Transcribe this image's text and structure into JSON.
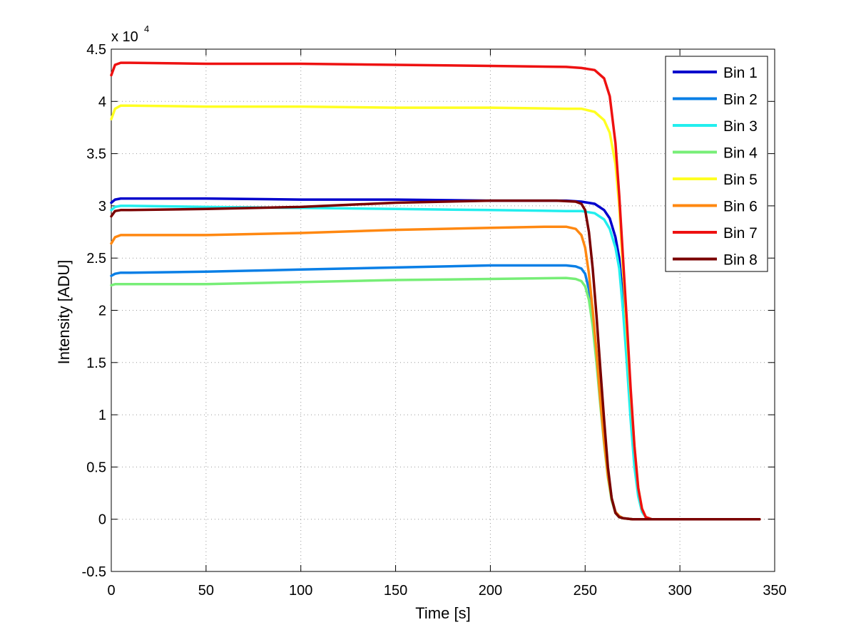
{
  "chart_data": {
    "type": "line",
    "title": "",
    "xlabel": "Time [s]",
    "ylabel": "Intensity [ADU]",
    "xlim": [
      0,
      350
    ],
    "ylim": [
      -0.5,
      4.5
    ],
    "xticks": [
      "0",
      "50",
      "100",
      "150",
      "200",
      "250",
      "300",
      "350"
    ],
    "yticks": [
      "-0.5",
      "0",
      "0.5",
      "1",
      "1.5",
      "2",
      "2.5",
      "3",
      "3.5",
      "4",
      "4.5"
    ],
    "y_multiplier": {
      "base": "x 10",
      "exponent": "4"
    },
    "grid": true,
    "legend_position": "top-right",
    "series": [
      {
        "name": "Bin 1",
        "color": "#0000cc",
        "x": [
          0,
          2,
          5,
          10,
          50,
          100,
          150,
          200,
          240,
          248,
          255,
          260,
          263,
          266,
          268,
          270,
          272,
          274,
          276,
          278,
          280,
          282,
          285,
          300,
          342
        ],
        "y": [
          3.03,
          3.06,
          3.07,
          3.07,
          3.07,
          3.06,
          3.06,
          3.05,
          3.05,
          3.04,
          3.02,
          2.96,
          2.88,
          2.7,
          2.5,
          2.1,
          1.6,
          1.0,
          0.55,
          0.25,
          0.08,
          0.02,
          0.0,
          0.0,
          0.0
        ]
      },
      {
        "name": "Bin 2",
        "color": "#0a7fe6",
        "x": [
          0,
          2,
          5,
          10,
          50,
          100,
          150,
          200,
          240,
          245,
          248,
          250,
          252,
          254,
          256,
          258,
          260,
          262,
          264,
          266,
          268,
          270,
          275,
          300,
          342
        ],
        "y": [
          2.33,
          2.35,
          2.36,
          2.36,
          2.37,
          2.39,
          2.41,
          2.43,
          2.43,
          2.42,
          2.4,
          2.35,
          2.2,
          1.95,
          1.6,
          1.2,
          0.8,
          0.45,
          0.2,
          0.07,
          0.03,
          0.01,
          0.0,
          0.0,
          0.0
        ]
      },
      {
        "name": "Bin 3",
        "color": "#22eeee",
        "x": [
          0,
          2,
          5,
          10,
          50,
          100,
          150,
          200,
          240,
          248,
          255,
          260,
          263,
          266,
          268,
          270,
          272,
          274,
          276,
          278,
          280,
          282,
          285,
          300,
          342
        ],
        "y": [
          2.96,
          2.99,
          3.0,
          3.0,
          2.99,
          2.98,
          2.97,
          2.96,
          2.95,
          2.95,
          2.93,
          2.87,
          2.78,
          2.6,
          2.4,
          2.0,
          1.5,
          0.95,
          0.5,
          0.22,
          0.07,
          0.02,
          0.0,
          0.0,
          0.0
        ]
      },
      {
        "name": "Bin 4",
        "color": "#77ee77",
        "x": [
          0,
          2,
          5,
          10,
          50,
          100,
          150,
          200,
          240,
          245,
          248,
          250,
          252,
          254,
          256,
          258,
          260,
          262,
          264,
          266,
          268,
          270,
          275,
          300,
          342
        ],
        "y": [
          2.24,
          2.25,
          2.25,
          2.25,
          2.25,
          2.27,
          2.29,
          2.3,
          2.31,
          2.3,
          2.28,
          2.23,
          2.1,
          1.85,
          1.5,
          1.1,
          0.72,
          0.4,
          0.18,
          0.06,
          0.02,
          0.01,
          0.0,
          0.0,
          0.0
        ]
      },
      {
        "name": "Bin 5",
        "color": "#ffff22",
        "x": [
          0,
          2,
          5,
          10,
          50,
          100,
          150,
          200,
          240,
          248,
          255,
          260,
          263,
          266,
          268,
          270,
          272,
          274,
          276,
          278,
          280,
          282,
          285,
          300,
          342
        ],
        "y": [
          3.83,
          3.93,
          3.96,
          3.96,
          3.95,
          3.95,
          3.94,
          3.94,
          3.93,
          3.93,
          3.9,
          3.82,
          3.7,
          3.4,
          3.0,
          2.4,
          1.8,
          1.2,
          0.7,
          0.3,
          0.1,
          0.02,
          0.0,
          0.0,
          0.0
        ]
      },
      {
        "name": "Bin 6",
        "color": "#ff8811",
        "x": [
          0,
          2,
          5,
          10,
          50,
          100,
          150,
          200,
          230,
          240,
          245,
          248,
          250,
          252,
          254,
          256,
          258,
          260,
          262,
          264,
          266,
          268,
          270,
          275,
          300,
          342
        ],
        "y": [
          2.64,
          2.7,
          2.72,
          2.72,
          2.72,
          2.74,
          2.77,
          2.79,
          2.8,
          2.8,
          2.78,
          2.72,
          2.6,
          2.35,
          2.0,
          1.6,
          1.15,
          0.75,
          0.42,
          0.2,
          0.07,
          0.03,
          0.01,
          0.0,
          0.0,
          0.0
        ]
      },
      {
        "name": "Bin 7",
        "color": "#ee1111",
        "x": [
          0,
          2,
          5,
          10,
          50,
          100,
          150,
          200,
          240,
          248,
          255,
          260,
          263,
          266,
          268,
          270,
          272,
          274,
          276,
          278,
          280,
          282,
          285,
          300,
          342
        ],
        "y": [
          4.25,
          4.35,
          4.37,
          4.37,
          4.36,
          4.36,
          4.35,
          4.34,
          4.33,
          4.32,
          4.3,
          4.22,
          4.05,
          3.6,
          3.1,
          2.5,
          1.9,
          1.25,
          0.7,
          0.3,
          0.1,
          0.02,
          0.0,
          0.0,
          0.0
        ]
      },
      {
        "name": "Bin 8",
        "color": "#7a0000",
        "x": [
          0,
          2,
          5,
          10,
          50,
          100,
          150,
          200,
          235,
          245,
          248,
          250,
          252,
          254,
          256,
          258,
          260,
          262,
          264,
          266,
          268,
          270,
          275,
          300,
          342
        ],
        "y": [
          2.9,
          2.95,
          2.96,
          2.96,
          2.97,
          2.99,
          3.03,
          3.05,
          3.05,
          3.04,
          3.02,
          2.96,
          2.75,
          2.4,
          1.95,
          1.45,
          0.95,
          0.5,
          0.2,
          0.06,
          0.02,
          0.01,
          0.0,
          0.0,
          0.0
        ]
      }
    ]
  }
}
